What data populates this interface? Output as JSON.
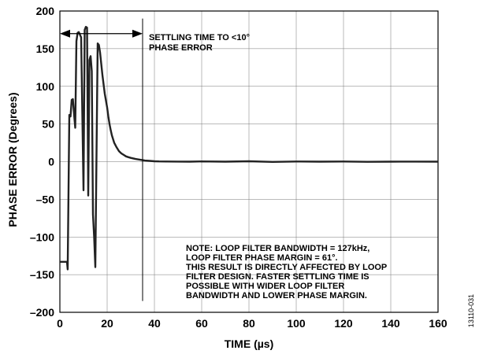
{
  "chart_data": {
    "type": "line",
    "xlabel": "TIME (µs)",
    "ylabel": "PHASE ERROR (Degrees)",
    "xlim": [
      0,
      160
    ],
    "ylim": [
      -200,
      200
    ],
    "x_ticks": [
      "0",
      "20",
      "40",
      "60",
      "80",
      "100",
      "120",
      "140",
      "160"
    ],
    "y_ticks": [
      "200",
      "150",
      "100",
      "50",
      "0",
      "–50",
      "–100",
      "–150",
      "–200"
    ],
    "grid": true,
    "series": [
      {
        "x": [
          0,
          3,
          3.3,
          4,
          4.5,
          5,
          5.5,
          6,
          6.5,
          7,
          7.5,
          8,
          9,
          10,
          10.5,
          11,
          11.5,
          12,
          12.5,
          13,
          13.5,
          14,
          14.5,
          15,
          15.5,
          16,
          16.5,
          17,
          17.5,
          18,
          19,
          20,
          20.5,
          21,
          21.5,
          22,
          23,
          24,
          25,
          26,
          27,
          28,
          29,
          30,
          32,
          34,
          36,
          38,
          40,
          42,
          45,
          50,
          55,
          60,
          70,
          80,
          90,
          100,
          110,
          120,
          130,
          140,
          150,
          160
        ],
        "y": [
          -133,
          -133,
          -143,
          62,
          60,
          82,
          83,
          63,
          45,
          160,
          171,
          172,
          165,
          -38,
          175,
          179,
          178,
          -45,
          135,
          140,
          120,
          -70,
          -100,
          -140,
          10,
          157,
          155,
          145,
          130,
          115,
          90,
          72,
          60,
          50,
          42,
          35,
          25,
          19,
          14,
          11,
          9,
          7,
          6,
          5,
          3.5,
          2.5,
          1.5,
          1,
          0.5,
          0.3,
          0.2,
          0.1,
          0,
          0.3,
          0,
          0.5,
          -0.3,
          0.2,
          0,
          0.2,
          -0.2,
          0,
          0.1,
          0
        ]
      }
    ],
    "annotations": {
      "settling_lines": [
        "SETTLING TIME TO <10°",
        "PHASE ERROR"
      ],
      "note_lines": [
        "NOTE: LOOP FILTER BANDWIDTH = 127kHz,",
        "LOOP FILTER PHASE MARGIN = 61°.",
        "THIS RESULT IS DIRECTLY AFFECTED BY LOOP",
        "FILTER DESIGN. FASTER SETTLING TIME IS",
        "POSSIBLE WITH WIDER LOOP FILTER",
        "BANDWIDTH AND LOWER PHASE MARGIN."
      ],
      "settling_arrow": {
        "x_start": 0,
        "x_end": 35,
        "y": 170
      },
      "settling_marker_x": 35
    },
    "figure_id": "13110-031"
  }
}
